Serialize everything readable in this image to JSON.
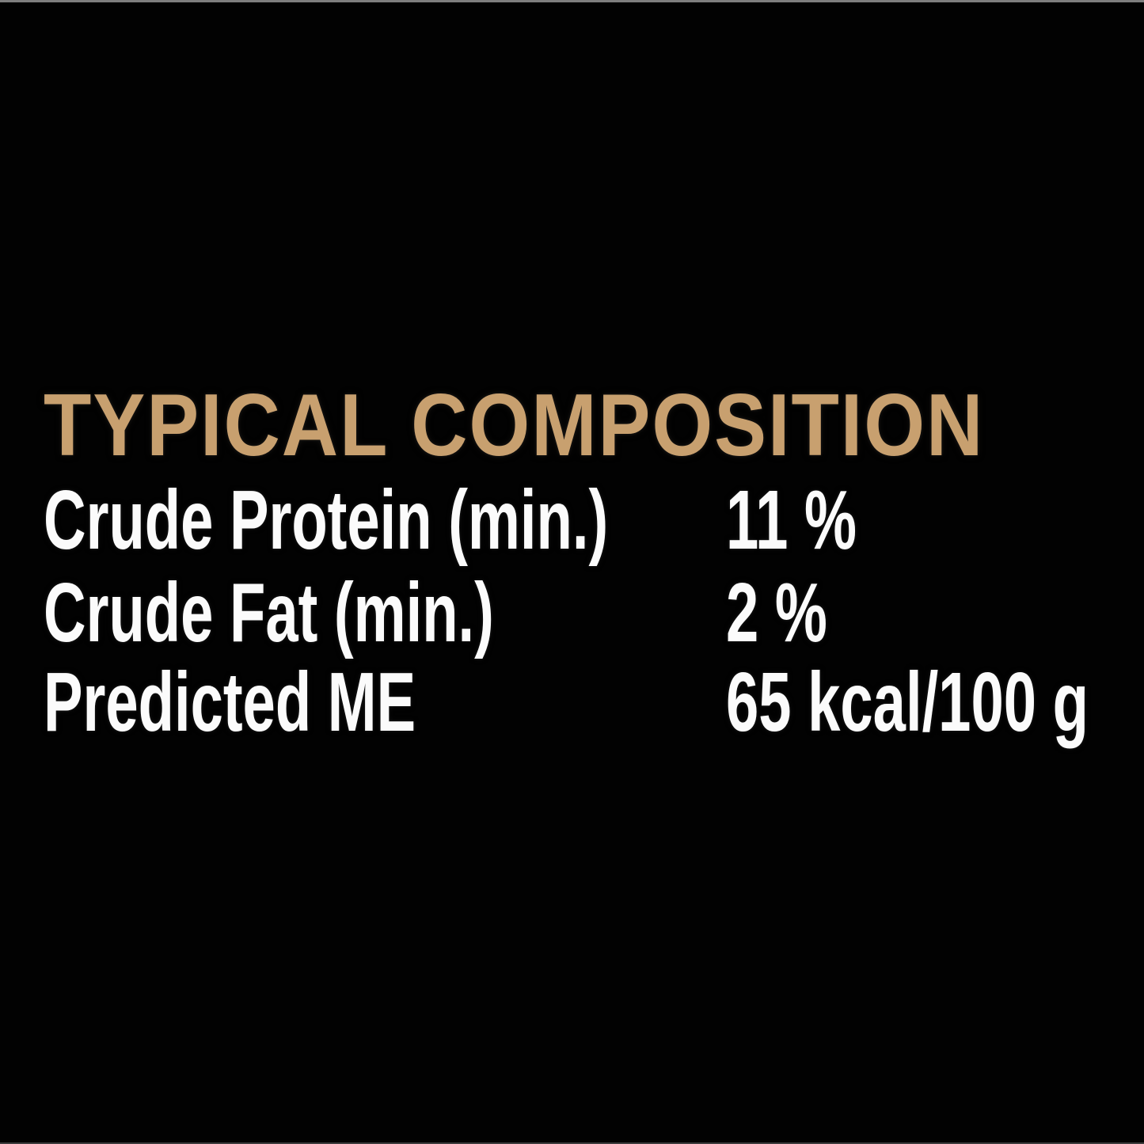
{
  "panel": {
    "title": "TYPICAL COMPOSITION",
    "rows": [
      {
        "label": "Crude Protein (min.)",
        "value": "11 %"
      },
      {
        "label": "Crude Fat (min.)",
        "value": "2 %"
      },
      {
        "label": "Predicted ME",
        "value": "65 kcal/100 g"
      }
    ]
  },
  "colors": {
    "background": "#020202",
    "title_accent": "#c8a06f",
    "body_text": "#fbfbfb",
    "top_edge_line": "#7e7e7e",
    "bottom_edge_line": "#3c3c3c"
  }
}
